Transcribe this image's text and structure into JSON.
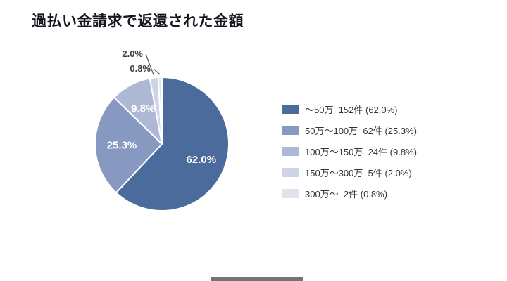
{
  "title": "過払い金請求で返還された金額",
  "chart_data": {
    "type": "pie",
    "title": "過払い金請求で返還された金額",
    "categories": [
      "～50万",
      "50万～100万",
      "100万～150万",
      "150万～300万",
      "300万～"
    ],
    "counts": [
      152,
      62,
      24,
      5,
      2
    ],
    "values": [
      62.0,
      25.3,
      9.8,
      2.0,
      0.8
    ],
    "unit": "%",
    "slice_labels": [
      "62.0%",
      "25.3%",
      "9.8%",
      "2.0%",
      "0.8%"
    ],
    "colors": [
      "#4a6b9b",
      "#8799c0",
      "#adb8d5",
      "#cdd5e5",
      "#e0e3ec"
    ],
    "start_angle_deg": 0,
    "direction": "clockwise",
    "legend_position": "right",
    "grid": false
  },
  "legend": {
    "items": [
      {
        "label": "～50万  152件 (62.0%)",
        "color": "#4a6b9b"
      },
      {
        "label": "50万～100万  62件 (25.3%)",
        "color": "#8799c0"
      },
      {
        "label": "100万～150万  24件 (9.8%)",
        "color": "#adb8d5"
      },
      {
        "label": "150万～300万  5件 (2.0%)",
        "color": "#cdd5e5"
      },
      {
        "label": "300万～  2件 (0.8%)",
        "color": "#e0e3ec"
      }
    ]
  }
}
